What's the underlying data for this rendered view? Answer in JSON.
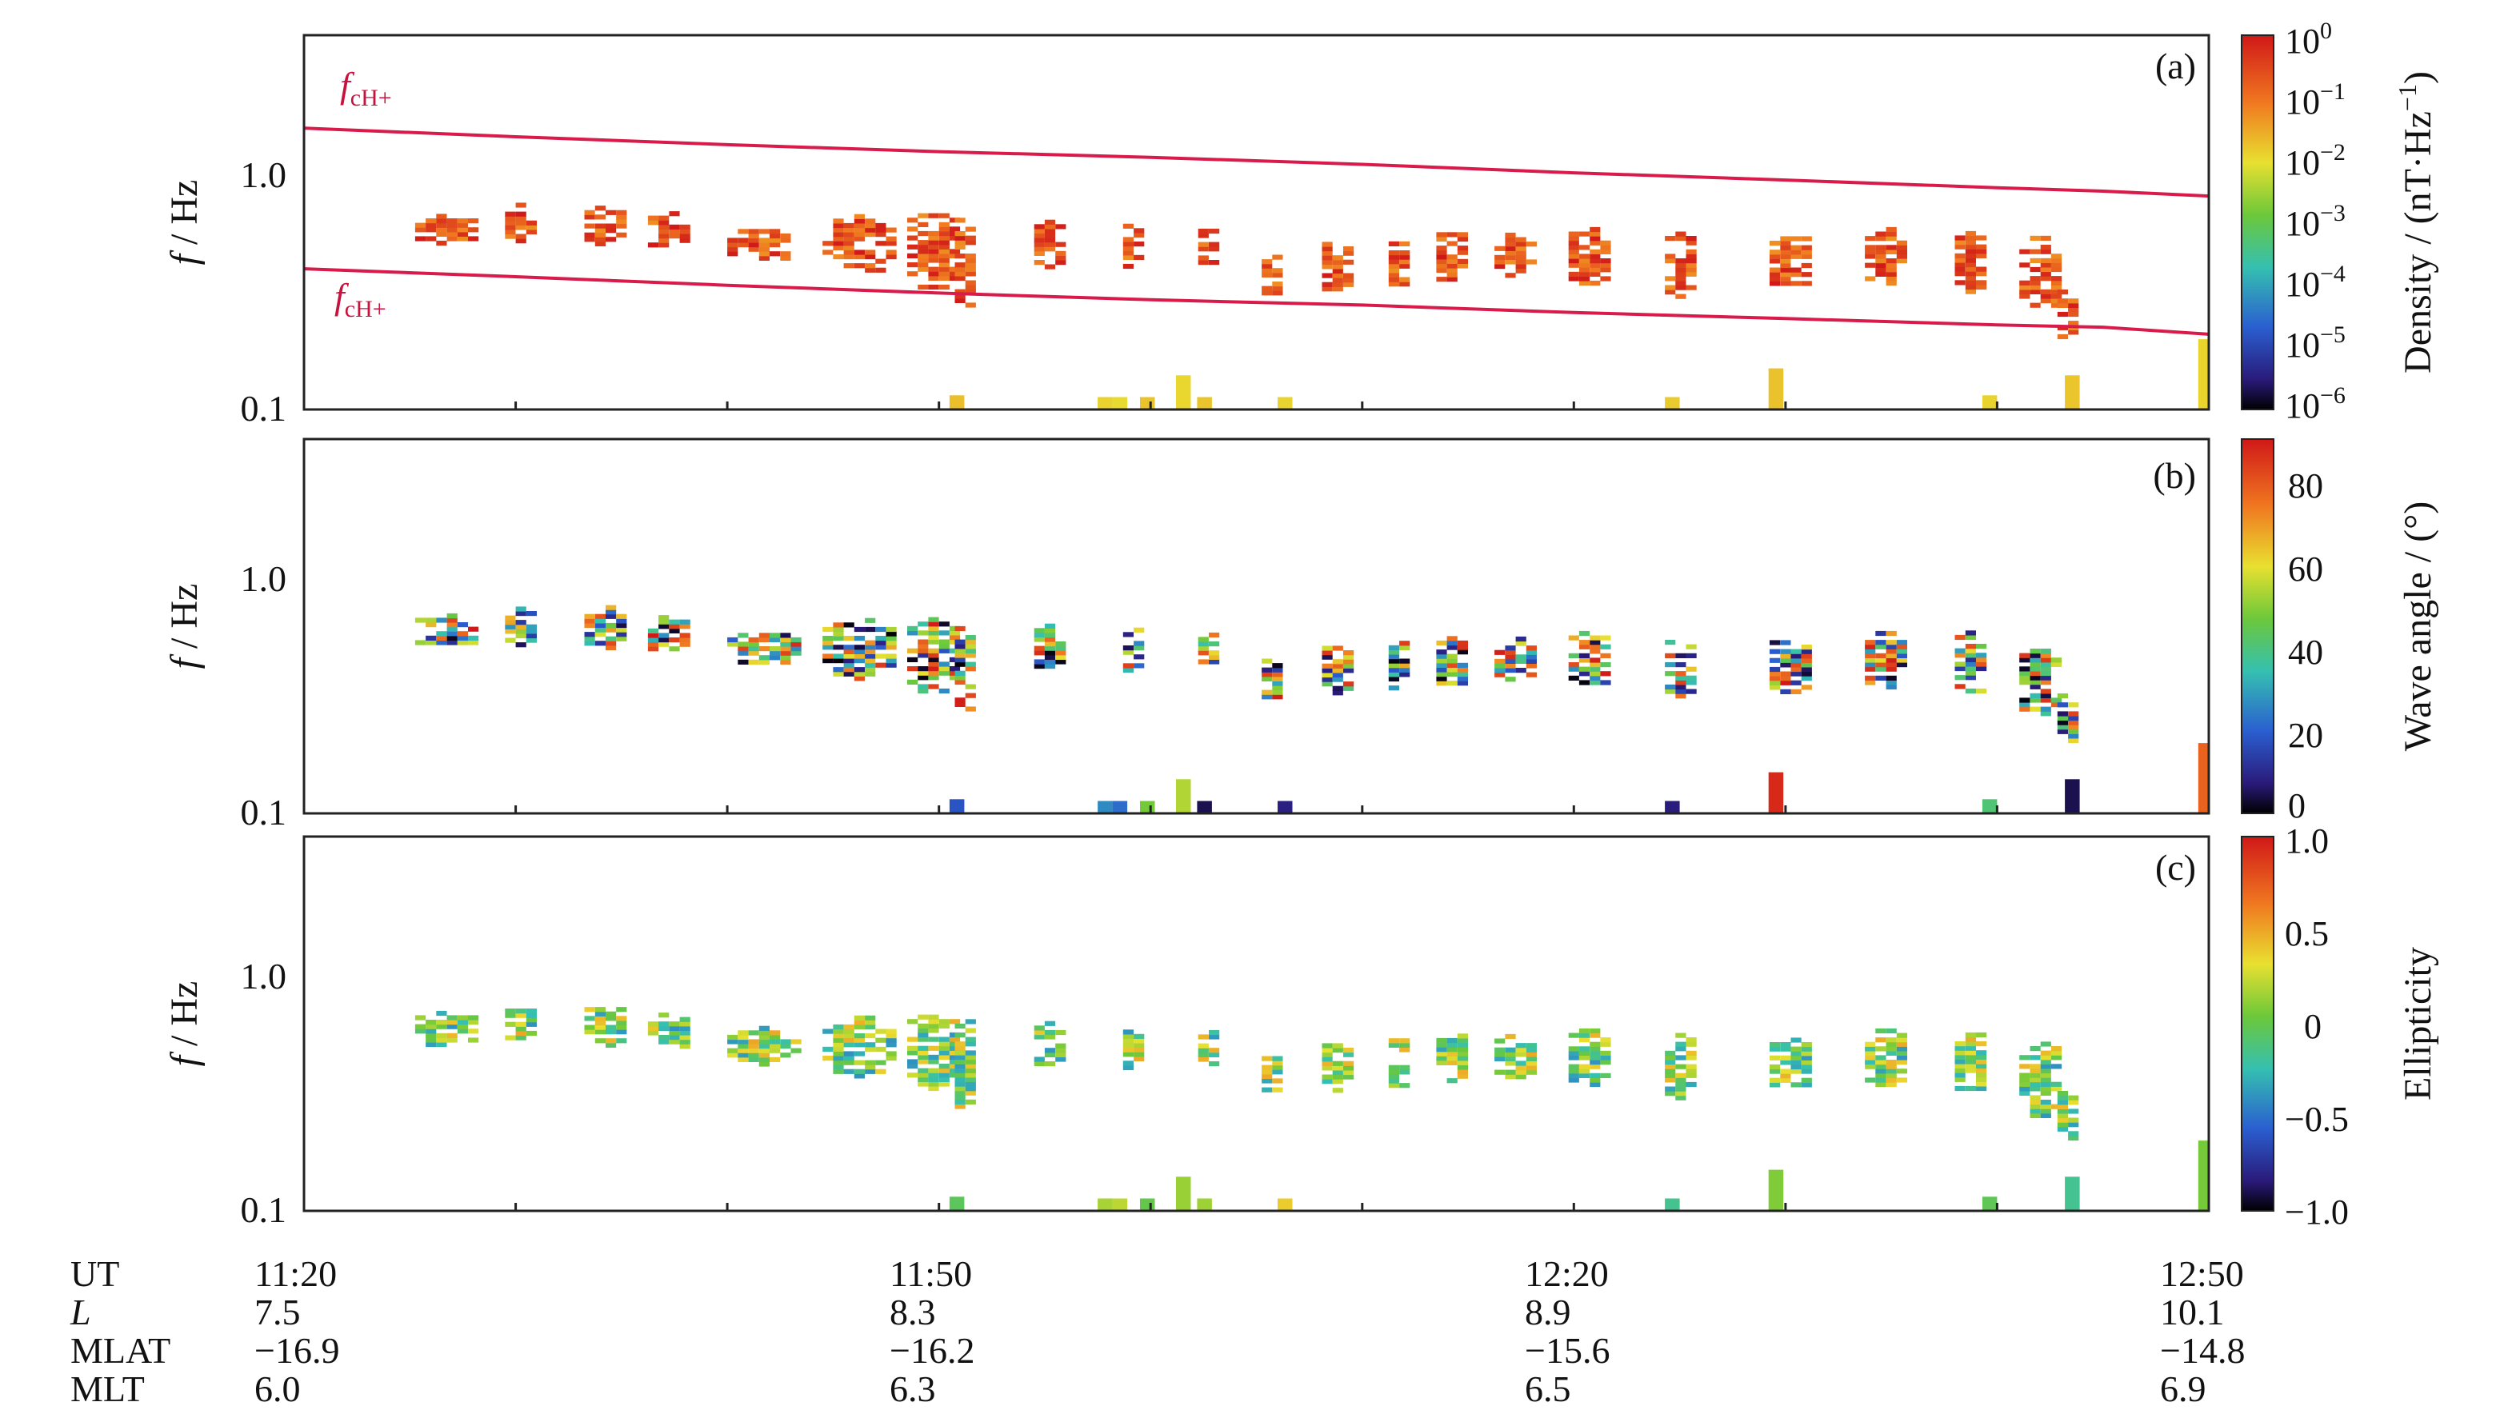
{
  "chart_data": [
    {
      "type": "heatmap",
      "panel_label": "(a)",
      "ylabel_italic": "f",
      "ylabel_rest": " / Hz",
      "yticks": [
        "0.1",
        "1.0"
      ],
      "yscale": "log",
      "ylim": [
        0.1,
        4.0
      ],
      "xlim": [
        0,
        90
      ],
      "line_labels": [
        {
          "italic": "f",
          "sub": "cH+"
        },
        {
          "italic": "f",
          "sub": "cH+"
        }
      ],
      "lines": [
        {
          "color": "#d81b4a",
          "x": [
            0,
            10,
            20,
            30,
            40,
            50,
            60,
            70,
            80,
            85,
            90
          ],
          "y": [
            1.6,
            1.47,
            1.36,
            1.27,
            1.2,
            1.12,
            1.03,
            0.96,
            0.89,
            0.86,
            0.82
          ]
        },
        {
          "color": "#d81b4a",
          "x": [
            0,
            10,
            20,
            30,
            40,
            50,
            60,
            70,
            80,
            85,
            90
          ],
          "y": [
            0.4,
            0.37,
            0.34,
            0.315,
            0.295,
            0.28,
            0.26,
            0.245,
            0.23,
            0.225,
            0.21
          ]
        }
      ],
      "colorbar": {
        "label": "Density / (nT·Hz",
        "label_sup": "−1",
        "label_close": ")",
        "ticks": [
          {
            "base": "10",
            "exp": "0"
          },
          {
            "base": "10",
            "exp": "−1"
          },
          {
            "base": "10",
            "exp": "−2"
          },
          {
            "base": "10",
            "exp": "−3"
          },
          {
            "base": "10",
            "exp": "−4"
          },
          {
            "base": "10",
            "exp": "−5"
          },
          {
            "base": "10",
            "exp": "−6"
          }
        ],
        "scale": "log",
        "range": [
          1e-06,
          1
        ]
      }
    },
    {
      "type": "heatmap",
      "panel_label": "(b)",
      "ylabel_italic": "f",
      "ylabel_rest": " / Hz",
      "yticks": [
        "0.1",
        "1.0"
      ],
      "yscale": "log",
      "ylim": [
        0.1,
        4.0
      ],
      "xlim": [
        0,
        90
      ],
      "colorbar": {
        "label": "Wave angle / (°)",
        "ticks": [
          "80",
          "60",
          "40",
          "20",
          "0"
        ],
        "range": [
          0,
          90
        ]
      }
    },
    {
      "type": "heatmap",
      "panel_label": "(c)",
      "ylabel_italic": "f",
      "ylabel_rest": " / Hz",
      "yticks": [
        "0.1",
        "1.0"
      ],
      "yscale": "log",
      "ylim": [
        0.1,
        4.0
      ],
      "xlim": [
        0,
        90
      ],
      "colorbar": {
        "label": "Ellipticity",
        "ticks": [
          "1.0",
          "0.5",
          "0",
          "−0.5",
          "−1.0"
        ],
        "range": [
          -1,
          1
        ]
      }
    }
  ],
  "wave_patches": [
    {
      "t": 6.5,
      "f": 0.58,
      "w": 3.5,
      "n": 1.2
    },
    {
      "t": 10.0,
      "f": 0.62,
      "w": 2.0,
      "n": 1.2
    },
    {
      "t": 14.0,
      "f": 0.6,
      "w": 2.5,
      "n": 1.25
    },
    {
      "t": 17.0,
      "f": 0.57,
      "w": 2.5,
      "n": 1.2
    },
    {
      "t": 21.5,
      "f": 0.5,
      "w": 4.0,
      "n": 1.2
    },
    {
      "t": 26.0,
      "f": 0.5,
      "w": 4.0,
      "n": 1.35
    },
    {
      "t": 29.5,
      "f": 0.47,
      "w": 3.0,
      "n": 1.5
    },
    {
      "t": 31.0,
      "f": 0.42,
      "w": 1.5,
      "n": 1.6
    },
    {
      "t": 35.0,
      "f": 0.5,
      "w": 2.0,
      "n": 1.25
    },
    {
      "t": 38.8,
      "f": 0.5,
      "w": 1.2,
      "n": 1.3
    },
    {
      "t": 42.5,
      "f": 0.48,
      "w": 1.5,
      "n": 1.2
    },
    {
      "t": 45.5,
      "f": 0.37,
      "w": 1.5,
      "n": 1.25
    },
    {
      "t": 48.5,
      "f": 0.4,
      "w": 1.8,
      "n": 1.3
    },
    {
      "t": 51.5,
      "f": 0.42,
      "w": 1.5,
      "n": 1.3
    },
    {
      "t": 54.0,
      "f": 0.44,
      "w": 2.0,
      "n": 1.3
    },
    {
      "t": 57.0,
      "f": 0.44,
      "w": 2.5,
      "n": 1.25
    },
    {
      "t": 60.5,
      "f": 0.44,
      "w": 2.5,
      "n": 1.35
    },
    {
      "t": 64.8,
      "f": 0.4,
      "w": 2.0,
      "n": 1.4
    },
    {
      "t": 70.0,
      "f": 0.42,
      "w": 2.5,
      "n": 1.35
    },
    {
      "t": 74.5,
      "f": 0.44,
      "w": 2.5,
      "n": 1.35
    },
    {
      "t": 78.5,
      "f": 0.42,
      "w": 2.0,
      "n": 1.4
    },
    {
      "t": 81.8,
      "f": 0.36,
      "w": 2.5,
      "n": 1.5
    },
    {
      "t": 83.0,
      "f": 0.25,
      "w": 1.3,
      "n": 1.3
    }
  ],
  "vertical_lines": [
    {
      "t": 30.5,
      "h": 0.115
    },
    {
      "t": 37.5,
      "h": 0.113
    },
    {
      "t": 38.2,
      "h": 0.113
    },
    {
      "t": 39.5,
      "h": 0.113
    },
    {
      "t": 41.2,
      "h": 0.14
    },
    {
      "t": 42.2,
      "h": 0.113
    },
    {
      "t": 46.0,
      "h": 0.113
    },
    {
      "t": 64.3,
      "h": 0.113
    },
    {
      "t": 69.2,
      "h": 0.15
    },
    {
      "t": 79.3,
      "h": 0.115
    },
    {
      "t": 83.2,
      "h": 0.14
    },
    {
      "t": 89.5,
      "h": 0.2
    }
  ],
  "time_axis": {
    "row_labels": [
      "UT",
      "L",
      "MLAT",
      "MLT"
    ],
    "columns": [
      {
        "t": 0,
        "values": [
          "11:20",
          "7.5",
          "−16.9",
          "6.0"
        ]
      },
      {
        "t": 30,
        "values": [
          "11:50",
          "8.3",
          "−16.2",
          "6.3"
        ]
      },
      {
        "t": 60,
        "values": [
          "12:20",
          "8.9",
          "−15.6",
          "6.5"
        ]
      },
      {
        "t": 90,
        "values": [
          "12:50",
          "10.1",
          "−14.8",
          "6.9"
        ]
      }
    ]
  }
}
